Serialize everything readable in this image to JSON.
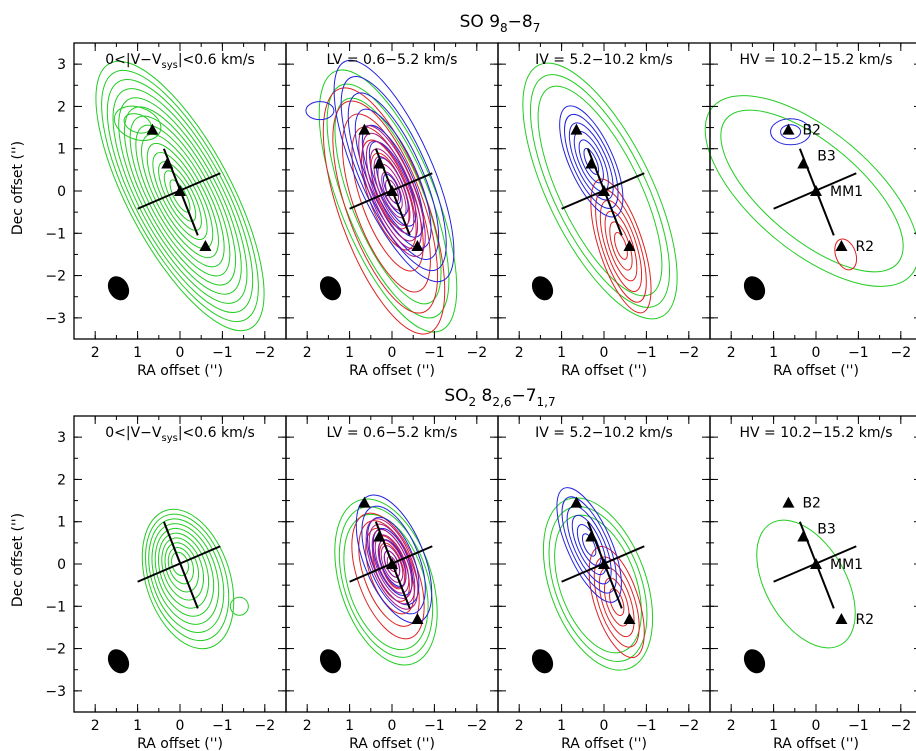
{
  "chart_data": [
    {
      "type": "contour",
      "title": "SO 9₈−8₇",
      "xlabel": "RA offset ('')",
      "ylabel": "Dec offset ('')",
      "xlim": [
        2.5,
        -2.5
      ],
      "ylim": [
        -3.5,
        3.5
      ],
      "xticks": [
        2,
        1,
        0,
        -1,
        -2
      ],
      "yticks": [
        3,
        2,
        1,
        0,
        -1,
        -2,
        -3
      ],
      "xticklabels": [
        "2",
        "1",
        "0",
        "−1",
        "−2"
      ],
      "yticklabels": [
        "3",
        "2",
        "1",
        "0",
        "−1",
        "−2",
        "−3"
      ],
      "panels": [
        {
          "label": "0<|V−V_sys|<0.6 km/s",
          "label_main": "0<|V−V",
          "label_sub": "sys",
          "label_tail": "|<0.6 km/s",
          "series": [
            "green"
          ],
          "sources_shown": true,
          "source_labels": false
        },
        {
          "label": "LV = 0.6−5.2 km/s",
          "series": [
            "green",
            "blue",
            "red"
          ],
          "sources_shown": true,
          "source_labels": false
        },
        {
          "label": "IV = 5.2−10.2 km/s",
          "series": [
            "green",
            "blue",
            "red"
          ],
          "sources_shown": true,
          "source_labels": false
        },
        {
          "label": "HV = 10.2−15.2 km/s",
          "series": [
            "green",
            "blue",
            "red"
          ],
          "sources_shown": true,
          "source_labels": true
        }
      ]
    },
    {
      "type": "contour",
      "title": "SO₂ 8₂,₆−7₁,₇",
      "xlabel": "RA offset ('')",
      "ylabel": "Dec offset ('')",
      "xlim": [
        2.5,
        -2.5
      ],
      "ylim": [
        -3.5,
        3.5
      ],
      "xticks": [
        2,
        1,
        0,
        -1,
        -2
      ],
      "yticks": [
        3,
        2,
        1,
        0,
        -1,
        -2,
        -3
      ],
      "xticklabels": [
        "2",
        "1",
        "0",
        "−1",
        "−2"
      ],
      "yticklabels": [
        "3",
        "2",
        "1",
        "0",
        "−1",
        "−2",
        "−3"
      ],
      "panels": [
        {
          "label": "0<|V−V_sys|<0.6 km/s",
          "label_main": "0<|V−V",
          "label_sub": "sys",
          "label_tail": "|<0.6 km/s",
          "series": [
            "green"
          ],
          "sources_shown": false,
          "source_labels": false
        },
        {
          "label": "LV = 0.6−5.2 km/s",
          "series": [
            "green",
            "blue",
            "red"
          ],
          "sources_shown": true,
          "source_labels": false
        },
        {
          "label": "IV = 5.2−10.2 km/s",
          "series": [
            "green",
            "blue",
            "red"
          ],
          "sources_shown": true,
          "source_labels": false
        },
        {
          "label": "HV = 10.2−15.2 km/s",
          "series": [
            "green"
          ],
          "sources_shown": true,
          "source_labels": true
        }
      ]
    }
  ],
  "titles": {
    "so_main": "SO 9",
    "so_sub1": "8",
    "so_mid": "−8",
    "so_sub2": "7",
    "so2_main": "SO",
    "so2_sub0": "2",
    "so2_mid": " 8",
    "so2_sub1": "2,6",
    "so2_mid2": "−7",
    "so2_sub2": "1,7"
  },
  "axis_labels": {
    "x": "RA offset ('')",
    "y": "Dec offset ('')"
  },
  "sources": [
    {
      "name": "B2",
      "ra": 0.65,
      "dec": 1.45
    },
    {
      "name": "B3",
      "ra": 0.3,
      "dec": 0.65
    },
    {
      "name": "MM1",
      "ra": 0.0,
      "dec": 0.0
    },
    {
      "name": "R2",
      "ra": -0.6,
      "dec": -1.3
    }
  ],
  "jet_axis": {
    "ra1": 0.38,
    "dec1": 1.0,
    "ra2": -0.42,
    "dec2": -1.05
  },
  "disk_axis": {
    "ra1": 1.0,
    "dec1": -0.42,
    "ra2": -0.95,
    "dec2": 0.42
  },
  "beam": {
    "ra": 1.45,
    "dec": -2.3,
    "major": 0.6,
    "minor": 0.42,
    "pa_deg": -30
  },
  "colors": {
    "green": "#22cc22",
    "blue": "#2222dd",
    "red": "#dd2222",
    "magenta": "#a8168a",
    "frame": "#000000"
  }
}
